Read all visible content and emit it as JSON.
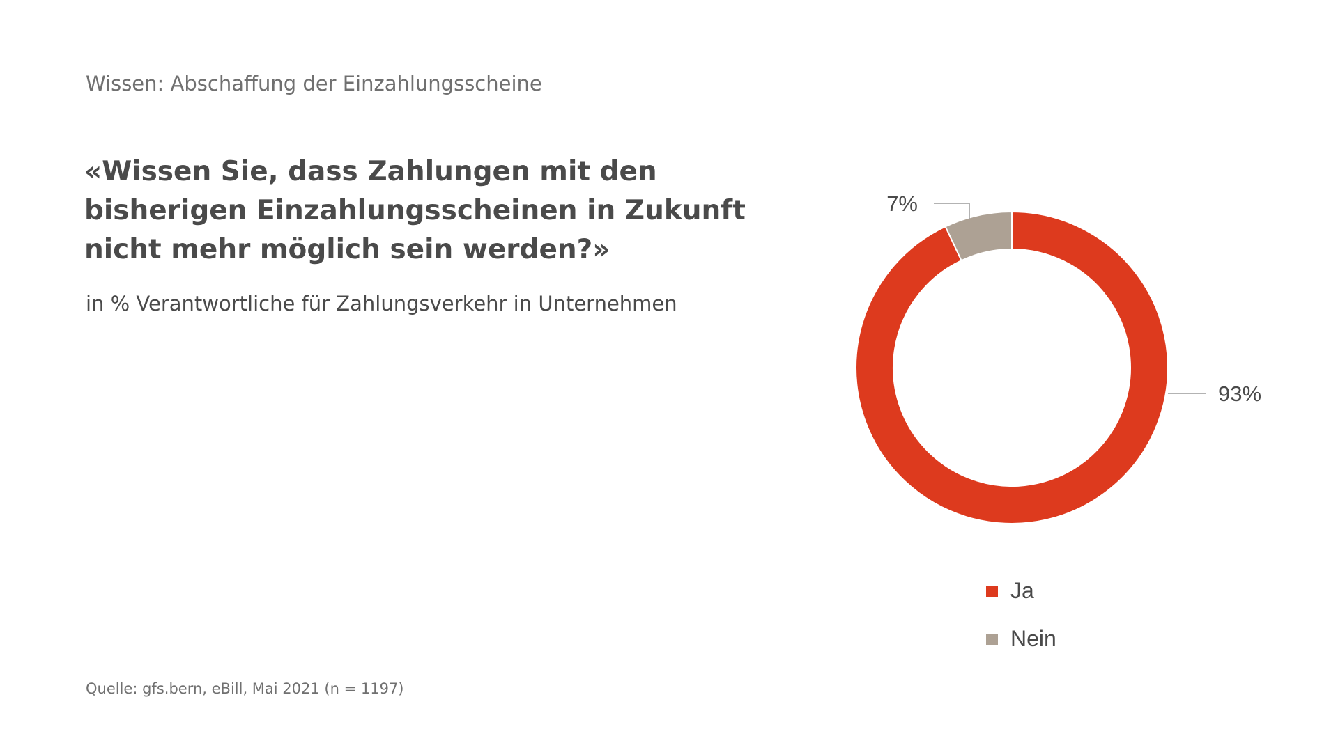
{
  "kicker": "Wissen: Abschaffung der Einzahlungsscheine",
  "question": "«Wissen Sie, dass Zahlungen mit den bisherigen Einzahlungsscheinen in Zukunft nicht mehr möglich sein werden?»",
  "subtitle": "in % Verantwortliche für Zahlungsverkehr in Unternehmen",
  "source": "Quelle: gfs.bern, eBill, Mai 2021 (n = 1197)",
  "chart_data": {
    "type": "pie",
    "variant": "donut",
    "categories": [
      "Ja",
      "Nein"
    ],
    "values": [
      93,
      7
    ],
    "data_labels": [
      "93%",
      "7%"
    ],
    "colors": [
      "#dd3a1e",
      "#ada194"
    ],
    "legend": {
      "position": "bottom",
      "entries": [
        "Ja",
        "Nein"
      ]
    }
  }
}
